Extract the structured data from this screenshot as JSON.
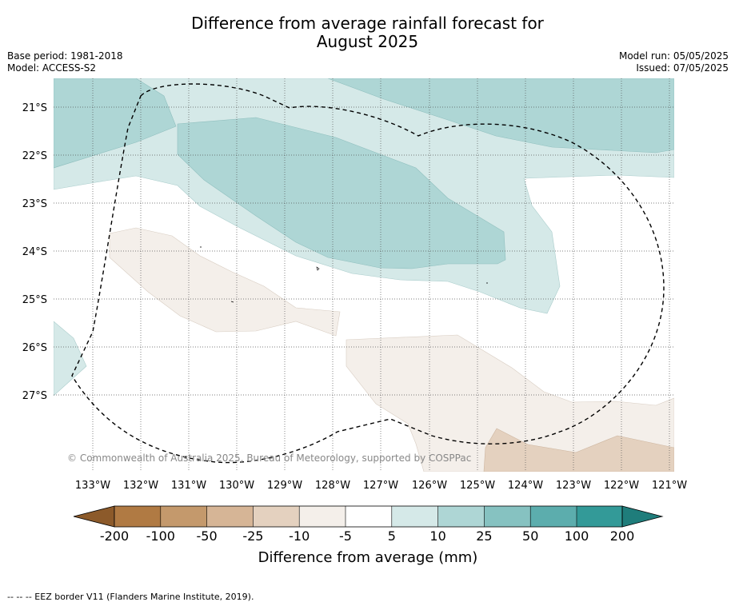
{
  "header": {
    "title_line1": "Difference from average rainfall forecast for",
    "title_line2": "August 2025",
    "base_period": "Base period: 1981-2018",
    "model": "Model: ACCESS-S2",
    "model_run": "Model run: 05/05/2025",
    "issued": "Issued: 07/05/2025"
  },
  "map": {
    "lat_labels": [
      "21°S",
      "22°S",
      "23°S",
      "24°S",
      "25°S",
      "26°S",
      "27°S"
    ],
    "lon_labels": [
      "133°W",
      "132°W",
      "131°W",
      "130°W",
      "129°W",
      "128°W",
      "127°W",
      "126°W",
      "125°W",
      "124°W",
      "123°W",
      "122°W",
      "121°W"
    ],
    "copyright": "© Commonwealth of Australia 2025, Bureau of Meteorology, supported by COSPPac"
  },
  "colorbar": {
    "ticks": [
      "-200",
      "-100",
      "-50",
      "-25",
      "-10",
      "-5",
      "5",
      "10",
      "25",
      "50",
      "100",
      "200"
    ],
    "colors": [
      "#8c5a2a",
      "#b07a43",
      "#c4996c",
      "#d6b596",
      "#e4d1bf",
      "#f4efea",
      "#ffffff",
      "#d5e9e8",
      "#aed6d5",
      "#86c2c1",
      "#5cadad",
      "#339a98",
      "#1f7d7b"
    ],
    "label": "Difference from average (mm)"
  },
  "footnote": "--  --  -- EEZ border V11 (Flanders Marine Institute, 2019)."
}
